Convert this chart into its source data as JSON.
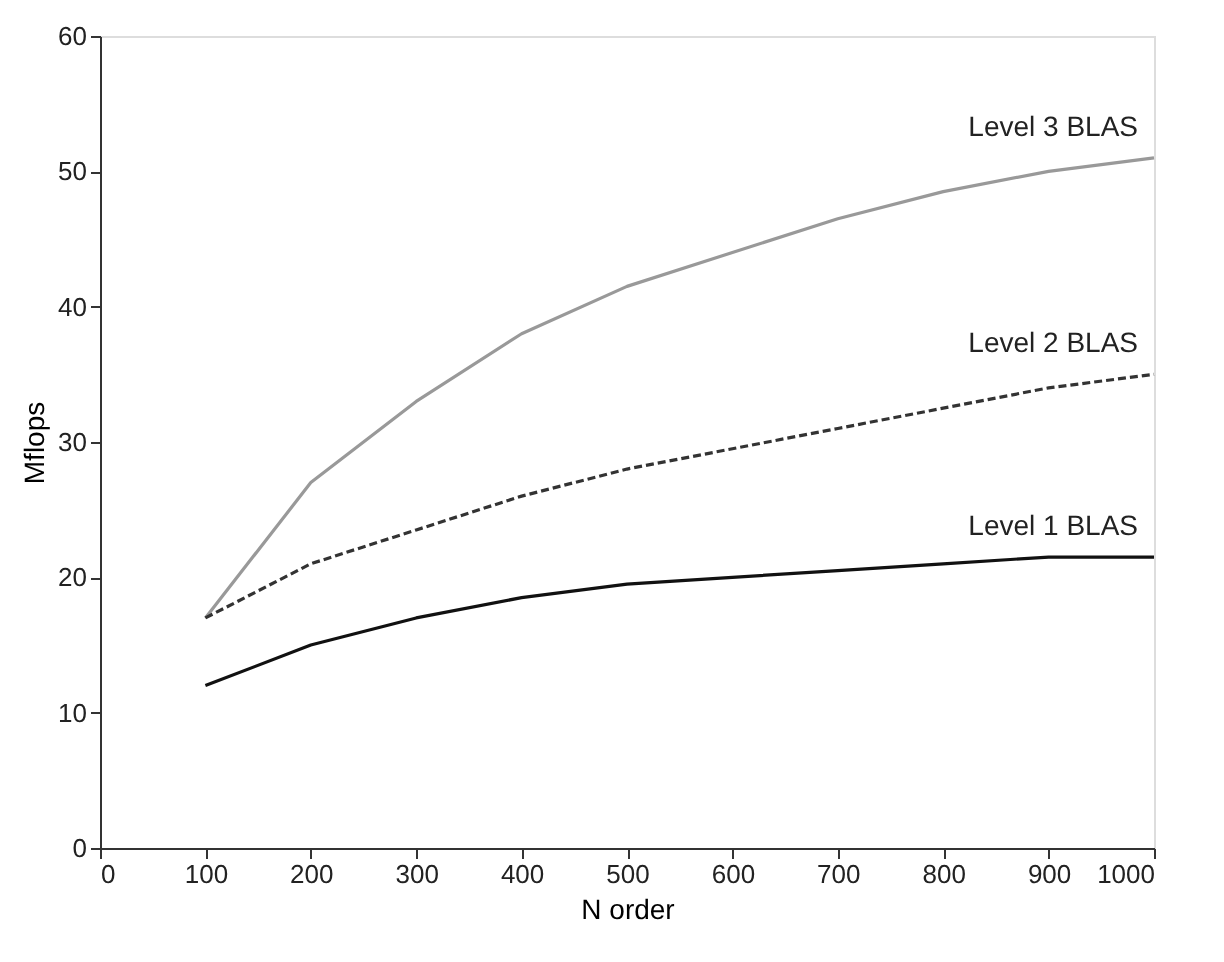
{
  "chart_data": {
    "type": "line",
    "xlabel": "N order",
    "ylabel": "Mflops",
    "x": [
      100,
      200,
      300,
      400,
      500,
      600,
      700,
      800,
      900,
      1000
    ],
    "xlim": [
      0,
      1000
    ],
    "xticks": [
      0,
      100,
      200,
      300,
      400,
      500,
      600,
      700,
      800,
      900,
      1000
    ],
    "ylim": [
      0,
      60
    ],
    "yticks": [
      0,
      10,
      20,
      30,
      40,
      50,
      60
    ],
    "grid": false,
    "legend": false,
    "marker": "none",
    "series": [
      {
        "name": "Level 3 BLAS",
        "color": "#999999",
        "line_style": "solid",
        "values": [
          17,
          27,
          33,
          38,
          41.5,
          44,
          46.5,
          48.5,
          50,
          51
        ]
      },
      {
        "name": "Level 2 BLAS",
        "color": "#333333",
        "line_style": "dashed",
        "values": [
          17,
          21,
          23.5,
          26,
          28,
          29.5,
          31,
          32.5,
          34,
          35
        ]
      },
      {
        "name": "Level 1 BLAS",
        "color": "#111111",
        "line_style": "solid",
        "values": [
          12,
          15,
          17,
          18.5,
          19.5,
          20,
          20.5,
          21,
          21.5,
          21.5
        ]
      }
    ]
  }
}
